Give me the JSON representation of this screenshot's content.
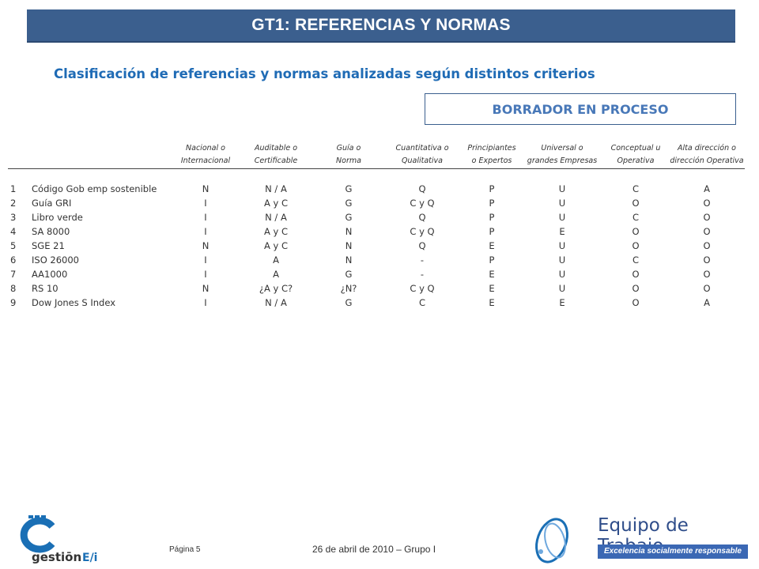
{
  "header": {
    "title": "GT1: REFERENCIAS Y NORMAS",
    "subtitle": "Clasificación de referencias y normas analizadas según distintos criterios",
    "draft_label": "BORRADOR EN PROCESO"
  },
  "table": {
    "columns": [
      {
        "line1": "Nacional o",
        "line2": "Internacional"
      },
      {
        "line1": "Auditable o",
        "line2": "Certificable"
      },
      {
        "line1": "Guía o",
        "line2": "Norma"
      },
      {
        "line1": "Cuantitativa o",
        "line2": "Qualitativa"
      },
      {
        "line1": "Principiantes",
        "line2": "o Expertos"
      },
      {
        "line1": "Universal o",
        "line2": "grandes Empresas"
      },
      {
        "line1": "Conceptual u",
        "line2": "Operativa"
      },
      {
        "line1": "Alta dirección o",
        "line2": "dirección Operativa"
      }
    ],
    "rows": [
      {
        "num": "1",
        "name": "Código Gob emp sostenible",
        "values": [
          "N",
          "N / A",
          "G",
          "Q",
          "P",
          "U",
          "C",
          "A"
        ]
      },
      {
        "num": "2",
        "name": "Guía GRI",
        "values": [
          "I",
          "A y C",
          "G",
          "C y Q",
          "P",
          "U",
          "O",
          "O"
        ]
      },
      {
        "num": "3",
        "name": "Libro verde",
        "values": [
          "I",
          "N / A",
          "G",
          "Q",
          "P",
          "U",
          "C",
          "O"
        ]
      },
      {
        "num": "4",
        "name": "SA 8000",
        "values": [
          "I",
          "A y C",
          "N",
          "C y Q",
          "P",
          "E",
          "O",
          "O"
        ]
      },
      {
        "num": "5",
        "name": "SGE 21",
        "values": [
          "N",
          "A y C",
          "N",
          "Q",
          "E",
          "U",
          "O",
          "O"
        ]
      },
      {
        "num": "6",
        "name": "ISO 26000",
        "values": [
          "I",
          "A",
          "N",
          "-",
          "P",
          "U",
          "C",
          "O"
        ]
      },
      {
        "num": "7",
        "name": "AA1000",
        "values": [
          "I",
          "A",
          "G",
          "-",
          "E",
          "U",
          "O",
          "O"
        ]
      },
      {
        "num": "8",
        "name": "RS 10",
        "values": [
          "N",
          "¿A y C?",
          "¿N?",
          "C y Q",
          "E",
          "U",
          "O",
          "O"
        ]
      },
      {
        "num": "9",
        "name": "Dow Jones S Index",
        "values": [
          "I",
          "N / A",
          "G",
          "C",
          "E",
          "E",
          "O",
          "A"
        ]
      }
    ]
  },
  "footer": {
    "page": "Página 5",
    "date": "26 de abril de 2010 – Grupo I",
    "logo_left_text": "gestión E/i",
    "logo_right_title": "Equipo de Trabajo",
    "logo_right_subtitle": "Excelencia socialmente responsable"
  },
  "colors": {
    "title_bar": "#3b5f8e",
    "subtitle": "#1f6bb5",
    "draft_text": "#4878b8",
    "logo_blue": "#1a6fb5"
  }
}
